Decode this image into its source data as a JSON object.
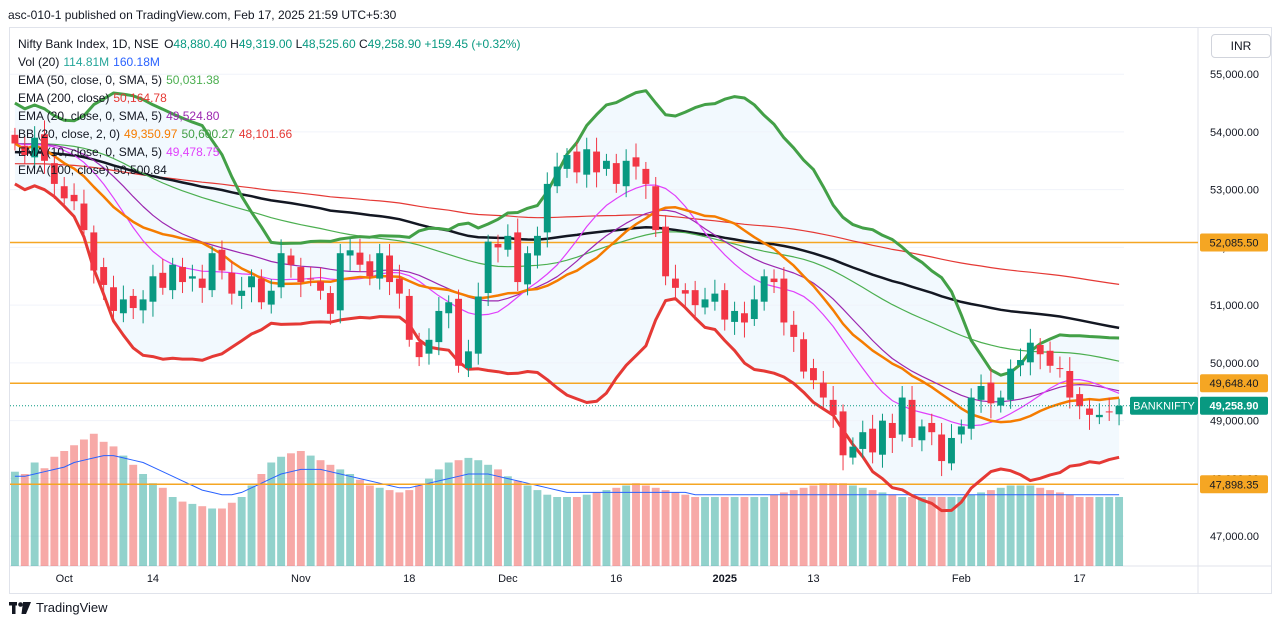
{
  "header": {
    "published": "asc-010-1 published on TradingView.com, Feb 17, 2025 21:59 UTC+5:30"
  },
  "legend": {
    "main": {
      "label": "Nifty Bank Index, 1D, NSE",
      "o_label": "O",
      "o": "48,880.40",
      "h_label": "H",
      "h": "49,319.00",
      "l_label": "L",
      "l": "48,525.60",
      "c_label": "C",
      "c": "49,258.90",
      "chg": "+159.45 (+0.32%)"
    },
    "rows": [
      {
        "label": "Vol (20)",
        "values": [
          "114.81M",
          "160.18M"
        ],
        "colors": [
          "#26a69a",
          "#2962ff"
        ]
      },
      {
        "label": "EMA (50, close, 0, SMA, 5)",
        "values": [
          "50,031.38"
        ],
        "colors": [
          "#4caf50"
        ]
      },
      {
        "label": "EMA (200, close)",
        "values": [
          "50,164.78"
        ],
        "colors": [
          "#e53935"
        ]
      },
      {
        "label": "EMA (20, close, 0, SMA, 5)",
        "values": [
          "49,524.80"
        ],
        "colors": [
          "#9c27b0"
        ]
      },
      {
        "label": "BB (20, close, 2, 0)",
        "values": [
          "49,350.97",
          "50,600.27",
          "48,101.66"
        ],
        "colors": [
          "#f57c00",
          "#43a047",
          "#e53935"
        ]
      },
      {
        "label": "EMA (10, close, 0, SMA, 5)",
        "values": [
          "49,478.75"
        ],
        "colors": [
          "#e040fb"
        ]
      },
      {
        "label": "EMA (100, close)",
        "values": [
          "50,500.84"
        ],
        "colors": [
          "#131722"
        ]
      }
    ]
  },
  "currency": "INR",
  "footer": {
    "brand": "TradingView"
  },
  "chart_data": {
    "type": "candlestick",
    "title": "Nifty Bank Index, 1D, NSE",
    "symbol": "BANKNIFTY",
    "last_price": "49,258.90",
    "ylim": [
      46500,
      55800
    ],
    "y_ticks": [
      47000,
      48000,
      49000,
      50000,
      51000,
      52000,
      53000,
      54000,
      55000
    ],
    "y_tick_labels": [
      "47,000.00",
      "48,000.00",
      "49,000.00",
      "50,000.00",
      "51,000.00",
      "52,000.00",
      "53,000.00",
      "54,000.00",
      "55,000.00"
    ],
    "x_ticks": [
      {
        "i": 5,
        "label": "Oct"
      },
      {
        "i": 14,
        "label": "14"
      },
      {
        "i": 29,
        "label": "Nov"
      },
      {
        "i": 40,
        "label": "18"
      },
      {
        "i": 50,
        "label": "Dec"
      },
      {
        "i": 61,
        "label": "16"
      },
      {
        "i": 72,
        "label": "2025"
      },
      {
        "i": 81,
        "label": "13"
      },
      {
        "i": 96,
        "label": "Feb"
      },
      {
        "i": 108,
        "label": "17"
      }
    ],
    "horizontal_levels": [
      {
        "value": 52085.5,
        "label": "52,085.50"
      },
      {
        "value": 49648.4,
        "label": "49,648.40"
      },
      {
        "value": 47898.35,
        "label": "47,898.35"
      }
    ],
    "closes": [
      53800,
      53600,
      53900,
      53500,
      53100,
      52850,
      52800,
      52300,
      51600,
      51350,
      50900,
      51100,
      50950,
      51100,
      51500,
      51300,
      51700,
      51400,
      51500,
      51300,
      51900,
      51600,
      51200,
      51250,
      51500,
      51050,
      51250,
      51900,
      51700,
      51400,
      51450,
      51250,
      50850,
      51900,
      51950,
      51700,
      51500,
      51900,
      51400,
      51200,
      50400,
      50100,
      50400,
      50900,
      51050,
      49950,
      50200,
      51150,
      52100,
      52000,
      52200,
      51400,
      51900,
      52200,
      53100,
      53400,
      53600,
      53300,
      53700,
      53300,
      53500,
      53100,
      53500,
      53400,
      53100,
      52300,
      51500,
      51300,
      51200,
      51000,
      51100,
      51200,
      50750,
      50900,
      50700,
      51100,
      51500,
      51400,
      50700,
      50450,
      49850,
      49700,
      49400,
      49100,
      48400,
      48550,
      48800,
      48450,
      49000,
      48700,
      49400,
      48700,
      48900,
      48800,
      48300,
      48700,
      48900,
      49400,
      49600,
      49300,
      49400,
      49900,
      50050,
      50350,
      50150,
      49950,
      49900,
      49400,
      49250,
      49100,
      49100,
      49150,
      49258.9
    ],
    "volumes": [
      82,
      80,
      90,
      85,
      95,
      100,
      105,
      110,
      115,
      108,
      104,
      96,
      88,
      80,
      72,
      68,
      60,
      56,
      54,
      52,
      50,
      50,
      55,
      60,
      70,
      80,
      90,
      95,
      98,
      100,
      96,
      92,
      88,
      84,
      80,
      75,
      70,
      68,
      66,
      64,
      66,
      70,
      76,
      84,
      90,
      92,
      94,
      92,
      88,
      84,
      78,
      74,
      70,
      66,
      62,
      60,
      60,
      60,
      62,
      64,
      66,
      68,
      70,
      72,
      70,
      68,
      66,
      64,
      62,
      60,
      60,
      60,
      60,
      60,
      60,
      60,
      60,
      62,
      64,
      66,
      68,
      70,
      72,
      72,
      72,
      70,
      68,
      66,
      64,
      62,
      60,
      60,
      60,
      60,
      60,
      60,
      60,
      62,
      64,
      66,
      68,
      70,
      70,
      70,
      68,
      66,
      64,
      62,
      60,
      60,
      60,
      60,
      60
    ],
    "volume_ma": [
      78,
      78,
      80,
      82,
      84,
      86,
      90,
      92,
      94,
      96,
      96,
      94,
      92,
      90,
      86,
      82,
      78,
      74,
      70,
      66,
      64,
      62,
      62,
      64,
      68,
      72,
      76,
      80,
      82,
      84,
      84,
      84,
      82,
      80,
      78,
      76,
      74,
      72,
      70,
      68,
      68,
      70,
      72,
      74,
      76,
      78,
      80,
      80,
      80,
      78,
      76,
      74,
      72,
      70,
      68,
      66,
      64,
      64,
      64,
      64,
      64,
      64,
      64,
      64,
      64,
      64,
      64,
      64,
      64,
      62,
      62,
      62,
      62,
      62,
      62,
      62,
      62,
      62,
      62,
      62,
      62,
      62,
      62,
      62,
      62,
      62,
      62,
      62,
      62,
      62,
      62,
      62,
      62,
      62,
      62,
      62,
      62,
      62,
      62,
      62,
      62,
      62,
      62,
      62,
      62,
      62,
      62,
      62,
      62,
      62,
      62,
      62,
      62
    ]
  }
}
